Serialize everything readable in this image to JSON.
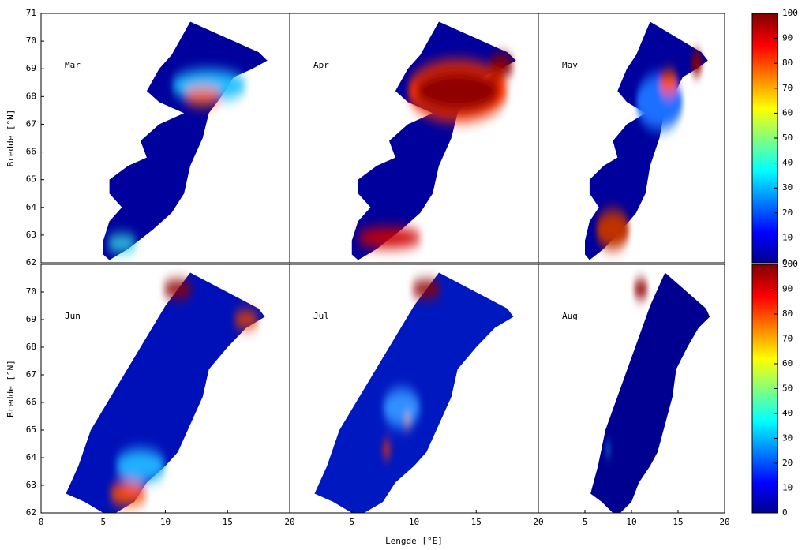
{
  "chart_data": [
    {
      "type": "heatmap",
      "title": "Mar",
      "xlim": [
        0,
        20
      ],
      "ylim": [
        62,
        71
      ],
      "yticks": [
        62,
        63,
        64,
        65,
        66,
        67,
        68,
        69,
        70,
        71
      ],
      "ylabel": "Bredde [°N]"
    },
    {
      "type": "heatmap",
      "title": "Apr",
      "xlim": [
        0,
        20
      ],
      "ylim": [
        62,
        71
      ]
    },
    {
      "type": "heatmap",
      "title": "May",
      "xlim": [
        0,
        20
      ],
      "ylim": [
        62,
        71
      ],
      "colorbar": {
        "lim": [
          0,
          100
        ],
        "ticks": [
          0,
          10,
          20,
          30,
          40,
          50,
          60,
          70,
          80,
          90,
          100
        ]
      }
    },
    {
      "type": "heatmap",
      "title": "Jun",
      "xlim": [
        0,
        20
      ],
      "ylim": [
        62,
        71
      ],
      "xticks": [
        0,
        5,
        10,
        15,
        20
      ],
      "yticks": [
        62,
        63,
        64,
        65,
        66,
        67,
        68,
        69,
        70
      ],
      "ylabel": "Bredde [°N]"
    },
    {
      "type": "heatmap",
      "title": "Jul",
      "xlim": [
        0,
        20
      ],
      "ylim": [
        62,
        71
      ],
      "xticks": [
        5,
        10,
        15,
        20
      ],
      "xlabel": "Lengde [°E]"
    },
    {
      "type": "heatmap",
      "title": "Aug",
      "xlim": [
        0,
        20
      ],
      "ylim": [
        62,
        71
      ],
      "xticks": [
        5,
        10,
        15,
        20
      ],
      "colorbar": {
        "lim": [
          0,
          100
        ],
        "ticks": [
          0,
          10,
          20,
          30,
          40,
          50,
          60,
          70,
          80,
          90,
          100
        ]
      }
    }
  ]
}
